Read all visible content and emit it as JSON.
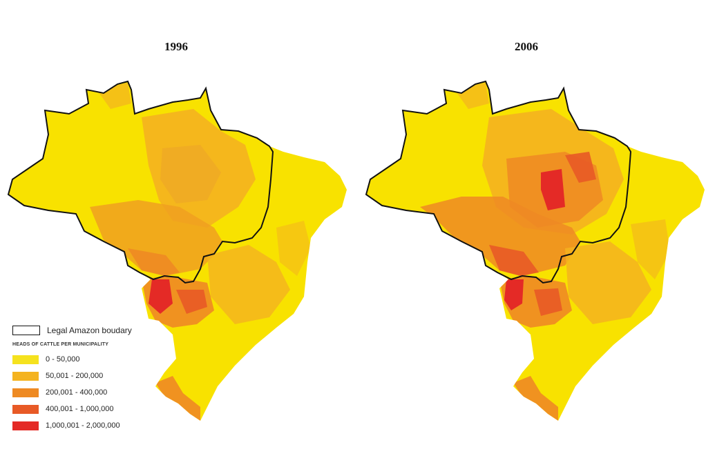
{
  "maps": [
    {
      "title": "1996"
    },
    {
      "title": "2006"
    }
  ],
  "legend": {
    "boundary_label": "Legal Amazon boudary",
    "heading": "HEADS OF CATTLE PER MUNICIPALITY",
    "classes": [
      {
        "label": "0 - 50,000",
        "color": "#f5e21e"
      },
      {
        "label": "50,001 - 200,000",
        "color": "#f4b31f"
      },
      {
        "label": "200,001 - 400,000",
        "color": "#ee8a23"
      },
      {
        "label": "400,001 - 1,000,000",
        "color": "#e85a26"
      },
      {
        "label": "1,000,001 - 2,000,000",
        "color": "#e42a26"
      }
    ]
  },
  "colors": {
    "base": "#f8e200",
    "boundary": "#111111"
  }
}
